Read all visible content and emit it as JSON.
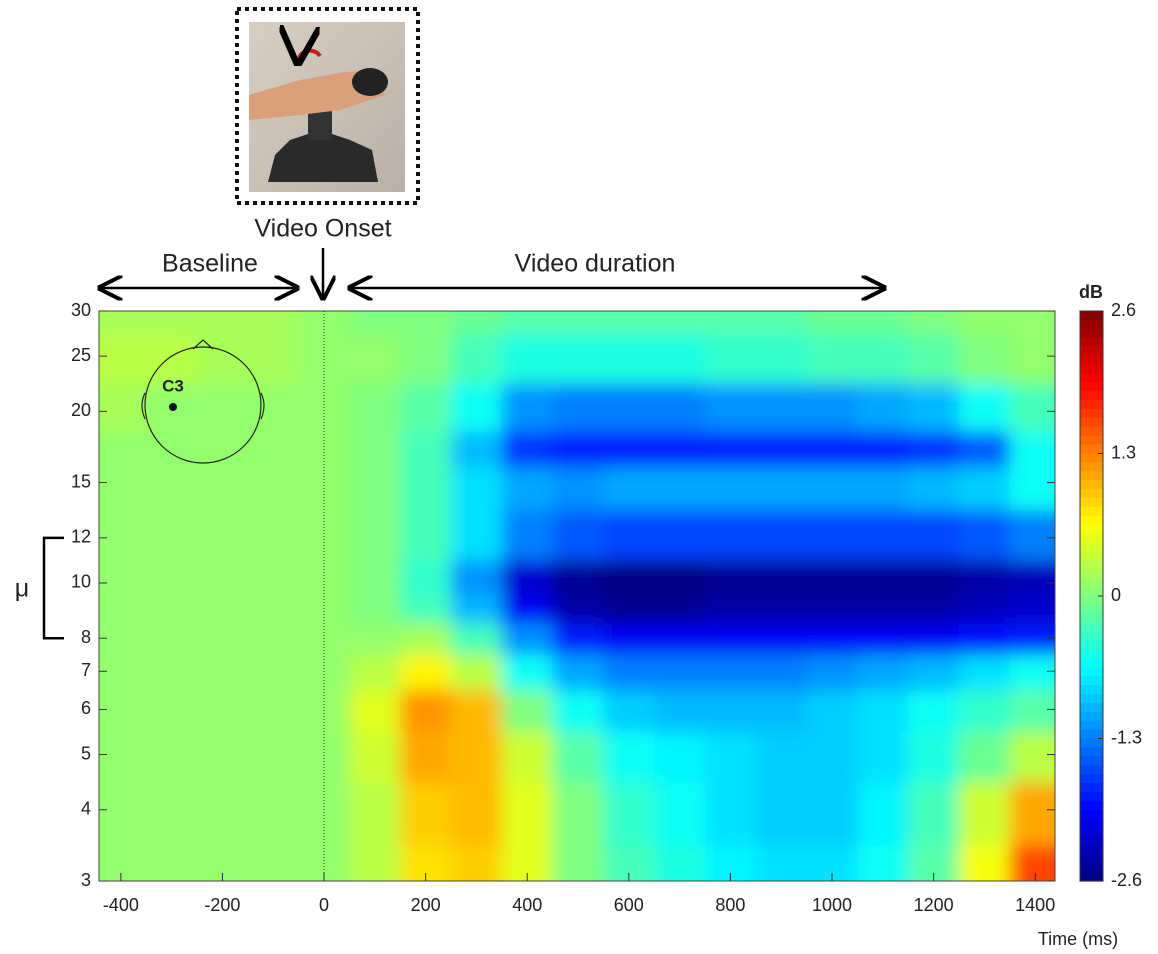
{
  "chart_data": {
    "type": "heatmap",
    "colormap": "jet",
    "yscale": "log",
    "xlabel": "Time (ms)",
    "colorbar_label": "dB",
    "annotations": {
      "onset": "Video Onset",
      "baseline": "Baseline",
      "duration": "Video duration",
      "electrode": "C3",
      "band": "μ"
    },
    "xlim": [
      -443,
      1439
    ],
    "ylim": [
      3,
      30
    ],
    "clim": [
      -2.6,
      2.6
    ],
    "xticks": [
      -400,
      -200,
      0,
      200,
      400,
      600,
      800,
      1000,
      1200,
      1400
    ],
    "yticks": [
      3,
      4,
      5,
      6,
      7,
      8,
      10,
      12,
      15,
      20,
      25,
      30
    ],
    "cticks": [
      2.6,
      1.3,
      0,
      -1.3,
      -2.6
    ],
    "vline": 0,
    "band_range": [
      8,
      12
    ],
    "x": [
      -400,
      -300,
      -200,
      -100,
      0,
      100,
      200,
      300,
      400,
      500,
      600,
      700,
      800,
      900,
      1000,
      1100,
      1200,
      1300,
      1400
    ],
    "y": [
      30,
      25,
      20,
      17,
      15,
      12,
      10,
      9,
      8,
      7,
      6,
      5,
      4,
      3
    ],
    "z": [
      [
        0.2,
        0.2,
        0.2,
        0.2,
        0.1,
        0,
        0,
        -0.1,
        -0.2,
        -0.2,
        -0.2,
        -0.2,
        -0.2,
        -0.2,
        -0.1,
        -0.1,
        0,
        0.1,
        0.1
      ],
      [
        0.3,
        0.3,
        0.2,
        0.2,
        0.1,
        0.1,
        0,
        -0.3,
        -0.5,
        -0.5,
        -0.5,
        -0.5,
        -0.4,
        -0.4,
        -0.3,
        -0.3,
        -0.2,
        0,
        0.1
      ],
      [
        0.2,
        0.1,
        0.1,
        0.1,
        0.1,
        0,
        -0.2,
        -0.6,
        -1.2,
        -1.3,
        -1.3,
        -1.3,
        -1.2,
        -1.2,
        -1.2,
        -1.1,
        -1.0,
        -0.6,
        -0.3
      ],
      [
        0.1,
        0.1,
        0.1,
        0.1,
        0.1,
        0,
        -0.3,
        -1.0,
        -1.7,
        -1.8,
        -1.8,
        -1.8,
        -1.8,
        -1.8,
        -1.8,
        -1.8,
        -1.7,
        -1.5,
        -0.6
      ],
      [
        0.1,
        0.1,
        0.1,
        0.1,
        0.1,
        0,
        -0.3,
        -0.8,
        -1.1,
        -1.2,
        -1.1,
        -1.1,
        -1.1,
        -1.1,
        -1.1,
        -1.1,
        -1.0,
        -0.9,
        -0.6
      ],
      [
        0.1,
        0.1,
        0.1,
        0.1,
        0.1,
        0,
        -0.3,
        -0.8,
        -1.3,
        -1.5,
        -1.6,
        -1.6,
        -1.6,
        -1.6,
        -1.6,
        -1.6,
        -1.6,
        -1.5,
        -1.3
      ],
      [
        0.1,
        0.1,
        0.1,
        0.1,
        0.1,
        0,
        -0.4,
        -1.2,
        -2.2,
        -2.5,
        -2.6,
        -2.6,
        -2.5,
        -2.5,
        -2.5,
        -2.5,
        -2.5,
        -2.4,
        -2.3
      ],
      [
        0.1,
        0.1,
        0.1,
        0.1,
        0.1,
        0,
        -0.3,
        -1.0,
        -2.0,
        -2.4,
        -2.5,
        -2.5,
        -2.4,
        -2.4,
        -2.4,
        -2.4,
        -2.4,
        -2.3,
        -2.2
      ],
      [
        0.1,
        0.1,
        0.1,
        0.1,
        0.1,
        0.1,
        0.2,
        -0.3,
        -1.2,
        -1.8,
        -2.0,
        -2.0,
        -2.0,
        -2.0,
        -2.0,
        -2.0,
        -2.0,
        -1.9,
        -1.8
      ],
      [
        0.1,
        0.1,
        0.1,
        0.1,
        0.1,
        0.3,
        0.7,
        0.3,
        -0.6,
        -1.1,
        -1.3,
        -1.3,
        -1.3,
        -1.3,
        -1.2,
        -1.1,
        -1.0,
        -0.8,
        -0.6
      ],
      [
        0.1,
        0.1,
        0.1,
        0.1,
        0.1,
        0.5,
        1.2,
        1.0,
        0,
        -0.6,
        -0.9,
        -1.0,
        -1.0,
        -1.0,
        -0.9,
        -0.8,
        -0.6,
        -0.4,
        -0.2
      ],
      [
        0.1,
        0.1,
        0.1,
        0.1,
        0.1,
        0.4,
        1.1,
        1.0,
        0.4,
        -0.2,
        -0.6,
        -0.7,
        -0.8,
        -0.9,
        -0.9,
        -0.8,
        -0.5,
        -0.1,
        0.3
      ],
      [
        0.1,
        0.1,
        0.1,
        0.1,
        0.1,
        0.3,
        0.9,
        1.0,
        0.5,
        0,
        -0.4,
        -0.6,
        -0.8,
        -0.9,
        -0.9,
        -0.7,
        -0.3,
        0.4,
        1.1
      ],
      [
        0.1,
        0.1,
        0.1,
        0.1,
        0.1,
        0.3,
        0.8,
        0.9,
        0.5,
        0,
        -0.3,
        -0.5,
        -0.7,
        -0.8,
        -0.8,
        -0.6,
        -0.2,
        0.6,
        1.6
      ]
    ]
  }
}
